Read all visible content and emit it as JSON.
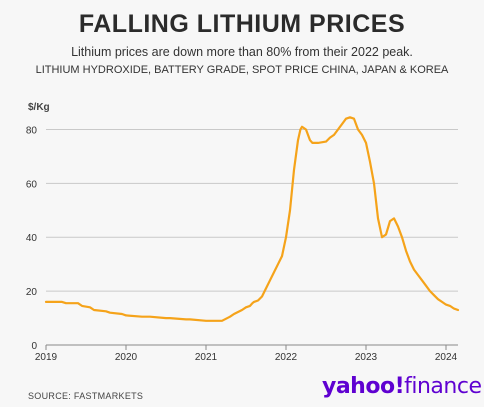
{
  "header": {
    "title": "FALLING LITHIUM PRICES",
    "subtitle": "Lithium prices are down more than 80% from their 2022 peak.",
    "subtitle2": "LITHIUM HYDROXIDE, BATTERY GRADE, SPOT PRICE CHINA, JAPAN & KOREA"
  },
  "footer": {
    "source": "SOURCE: FASTMARKETS",
    "logo_main": "yahoo!",
    "logo_sub": "finance"
  },
  "colors": {
    "line": "#f5a31a",
    "grid": "#c9c9c9",
    "axis": "#888888",
    "logo": "#5f01d1"
  },
  "chart_data": {
    "type": "line",
    "title": "FALLING LITHIUM PRICES",
    "ylabel": "$/Kg",
    "xlabel": "",
    "ylim": [
      0,
      85
    ],
    "xlim": [
      2019,
      2024.15
    ],
    "yticks": [
      0,
      20,
      40,
      60,
      80
    ],
    "xticks": [
      2019,
      2020,
      2021,
      2022,
      2023,
      2024
    ],
    "grid": true,
    "series": [
      {
        "x": [
          2019.0,
          2019.2,
          2019.25,
          2019.4,
          2019.45,
          2019.55,
          2019.6,
          2019.75,
          2019.8,
          2019.95,
          2020.0,
          2020.2,
          2020.3,
          2020.5,
          2020.55,
          2020.75,
          2020.8,
          2021.0,
          2021.1,
          2021.15,
          2021.2,
          2021.3,
          2021.35,
          2021.45,
          2021.5,
          2021.55,
          2021.58,
          2021.6,
          2021.65,
          2021.7,
          2021.75,
          2021.8,
          2021.85,
          2021.9,
          2021.95,
          2022.0,
          2022.05,
          2022.1,
          2022.15,
          2022.18,
          2022.2,
          2022.25,
          2022.3,
          2022.33,
          2022.4,
          2022.5,
          2022.55,
          2022.6,
          2022.65,
          2022.7,
          2022.75,
          2022.8,
          2022.85,
          2022.9,
          2022.95,
          2023.0,
          2023.05,
          2023.1,
          2023.15,
          2023.2,
          2023.25,
          2023.28,
          2023.3,
          2023.35,
          2023.4,
          2023.45,
          2023.5,
          2023.55,
          2023.6,
          2023.65,
          2023.7,
          2023.75,
          2023.8,
          2023.85,
          2023.9,
          2023.95,
          2024.0,
          2024.05,
          2024.1,
          2024.15
        ],
        "y": [
          16,
          16,
          15.5,
          15.5,
          14.5,
          14,
          13,
          12.5,
          12,
          11.5,
          11,
          10.5,
          10.5,
          10,
          10,
          9.5,
          9.5,
          9,
          9,
          9,
          9,
          10.5,
          11.5,
          13,
          14,
          14.5,
          15.5,
          16,
          16.5,
          18,
          21,
          24,
          27,
          30,
          33,
          40,
          50,
          65,
          76,
          80,
          81,
          80,
          76,
          75,
          75,
          75.5,
          77,
          78,
          80,
          82,
          84,
          84.5,
          84,
          80,
          78,
          75,
          68,
          60,
          47,
          40,
          41,
          44,
          46,
          47,
          44,
          40,
          35,
          31,
          28,
          26,
          24,
          22,
          20,
          18.5,
          17,
          16,
          15,
          14.5,
          13.5,
          13
        ]
      }
    ]
  }
}
